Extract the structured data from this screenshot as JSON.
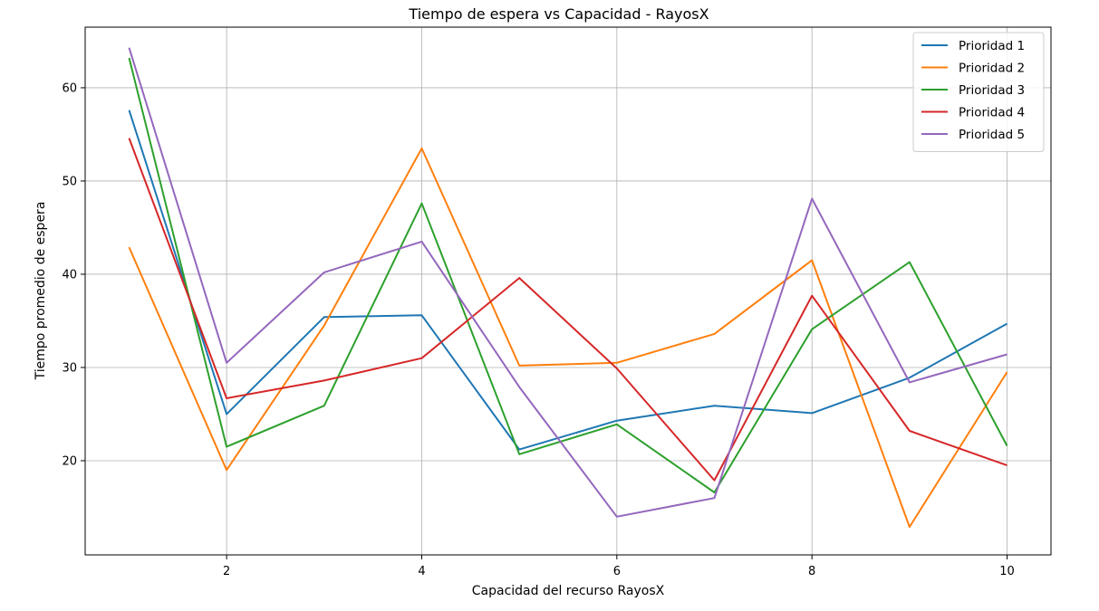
{
  "chart_data": {
    "type": "line",
    "title": "Tiempo de espera vs Capacidad - RayosX",
    "xlabel": "Capacidad del recurso RayosX",
    "ylabel": "Tiempo promedio de espera",
    "x": [
      1,
      2,
      3,
      4,
      5,
      6,
      7,
      8,
      9,
      10
    ],
    "xlim": [
      0.55,
      10.45
    ],
    "ylim": [
      9.9,
      66.5
    ],
    "xticks": [
      2,
      4,
      6,
      8,
      10
    ],
    "yticks": [
      20,
      30,
      40,
      50,
      60
    ],
    "grid": true,
    "legend_position": "top-right",
    "series": [
      {
        "name": "Prioridad 1",
        "color": "#1f77b4",
        "values": [
          57.6,
          25.0,
          35.4,
          35.6,
          21.2,
          24.3,
          25.9,
          25.1,
          28.9,
          34.7
        ]
      },
      {
        "name": "Prioridad 2",
        "color": "#ff7f0e",
        "values": [
          42.9,
          19.0,
          34.5,
          53.5,
          30.2,
          30.5,
          33.6,
          41.5,
          12.9,
          29.5
        ]
      },
      {
        "name": "Prioridad 3",
        "color": "#2ca02c",
        "values": [
          63.2,
          21.5,
          25.9,
          47.6,
          20.7,
          23.9,
          16.6,
          34.1,
          41.3,
          21.6
        ]
      },
      {
        "name": "Prioridad 4",
        "color": "#d62728",
        "values": [
          54.6,
          26.7,
          28.6,
          31.0,
          39.6,
          29.9,
          17.9,
          37.7,
          23.2,
          19.5
        ]
      },
      {
        "name": "Prioridad 5",
        "color": "#9467bd",
        "values": [
          64.3,
          30.5,
          40.2,
          43.5,
          27.9,
          14.0,
          16.0,
          48.1,
          28.4,
          31.4
        ]
      }
    ]
  }
}
